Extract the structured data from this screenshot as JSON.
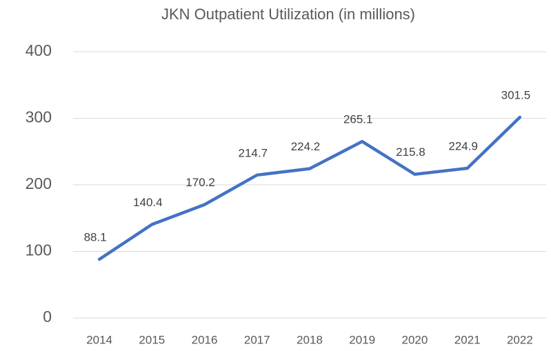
{
  "chart_data": {
    "type": "line",
    "title": "JKN Outpatient Utilization (in millions)",
    "categories": [
      "2014",
      "2015",
      "2016",
      "2017",
      "2018",
      "2019",
      "2020",
      "2021",
      "2022"
    ],
    "values": [
      88.1,
      140.4,
      170.2,
      214.7,
      224.2,
      265.1,
      215.8,
      224.9,
      301.5
    ],
    "color": "#4472c4",
    "ylim": [
      0,
      400
    ],
    "yticks": [
      0,
      100,
      200,
      300,
      400
    ],
    "grid": true
  }
}
